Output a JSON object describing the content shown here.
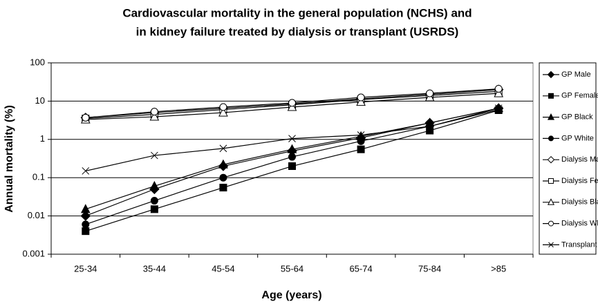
{
  "chart_data": {
    "type": "line",
    "title": [
      "Cardiovascular mortality in the general population (NCHS) and",
      "in kidney failure treated by dialysis or transplant (USRDS)"
    ],
    "x_label": "Age (years)",
    "y_label": "Annual mortality (%)",
    "categories": [
      "25-34",
      "35-44",
      "45-54",
      "55-64",
      "65-74",
      "75-84",
      ">85"
    ],
    "ylim": [
      0.001,
      100
    ],
    "yticks": [
      0.001,
      0.01,
      0.1,
      1,
      10,
      100
    ],
    "log_y": true,
    "grid": true,
    "legend": "right",
    "series": [
      {
        "name": "GP Male",
        "color": "#000000",
        "marker": "diamond",
        "marker_fill": "#000000",
        "values": [
          0.01,
          0.05,
          0.2,
          0.5,
          1.1,
          2.7,
          6.5
        ]
      },
      {
        "name": "GP Female",
        "color": "#000000",
        "marker": "square",
        "marker_fill": "#000000",
        "values": [
          0.004,
          0.015,
          0.055,
          0.2,
          0.55,
          1.7,
          5.8
        ]
      },
      {
        "name": "GP Black",
        "color": "#000000",
        "marker": "triangle",
        "marker_fill": "#000000",
        "values": [
          0.015,
          0.06,
          0.22,
          0.55,
          1.2,
          2.7,
          6.5
        ]
      },
      {
        "name": "GP White",
        "color": "#000000",
        "marker": "circle",
        "marker_fill": "#000000",
        "values": [
          0.006,
          0.025,
          0.1,
          0.35,
          0.9,
          2.2,
          6
        ]
      },
      {
        "name": "Dialysis Male",
        "color": "#000000",
        "marker": "diamond",
        "marker_fill": "#ffffff",
        "values": [
          3.7,
          5,
          6.5,
          8.5,
          11.5,
          15,
          20
        ]
      },
      {
        "name": "Dialysis Female",
        "color": "#000000",
        "marker": "square",
        "marker_fill": "#ffffff",
        "values": [
          3.5,
          4.5,
          6,
          8,
          11,
          14,
          18
        ]
      },
      {
        "name": "Dialysis Black",
        "color": "#000000",
        "marker": "triangle",
        "marker_fill": "#ffffff",
        "values": [
          3.3,
          3.9,
          5,
          7,
          9.5,
          12.5,
          16
        ]
      },
      {
        "name": "Dialysis White",
        "color": "#000000",
        "marker": "circle",
        "marker_fill": "#ffffff",
        "values": [
          3.7,
          5.3,
          7,
          9,
          12.5,
          16,
          21
        ]
      },
      {
        "name": "Transplant",
        "color": "#000000",
        "marker": "x",
        "marker_fill": "#ffffff",
        "values": [
          0.15,
          0.38,
          0.58,
          1.05,
          1.3,
          2.2,
          6.5
        ]
      }
    ]
  }
}
